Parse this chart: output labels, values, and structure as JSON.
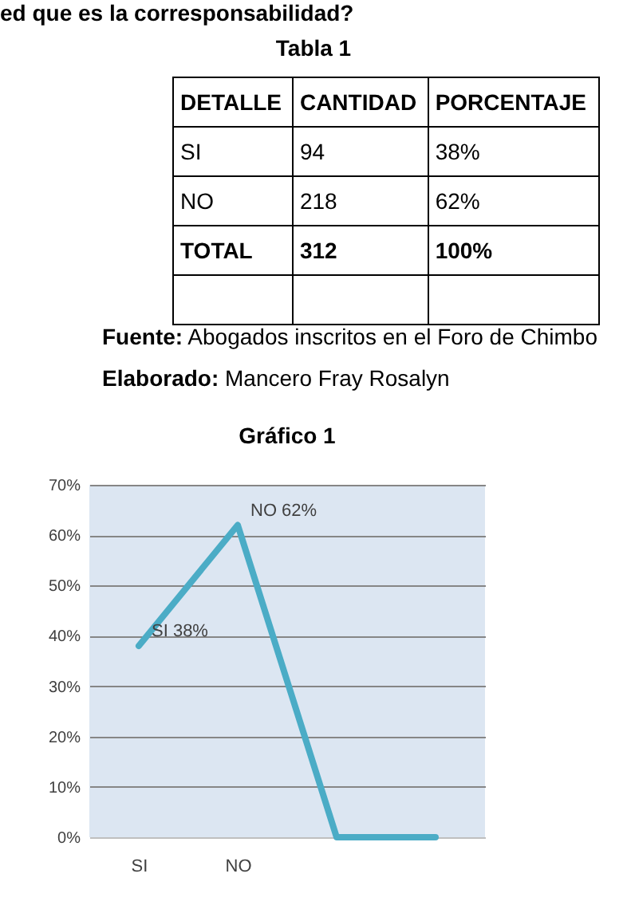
{
  "chart_data": [
    {
      "type": "other",
      "title": "Tabla 1",
      "subtitle": "ed que es la corresponsabilidad?",
      "categories": [
        "DETALLE",
        "CANTIDAD",
        "PORCENTAJE"
      ],
      "annotations": [
        "SI",
        "94",
        "38%",
        "NO",
        "218",
        "62%",
        "TOTAL",
        "312",
        "100%",
        "Fuente: Abogados inscritos en el Foro de Chimbo",
        "Elaborado: Mancero Fray Rosalyn"
      ]
    },
    {
      "type": "line",
      "title": "Gráfico 1",
      "categories": [
        "SI",
        "NO",
        null,
        null
      ],
      "values": [
        38,
        62,
        0,
        0
      ],
      "color": "#4bacc6",
      "value_labels": [
        "SI 38%",
        "NO 62%",
        null,
        null
      ],
      "ylim": [
        0,
        70
      ],
      "yticks": [
        {
          "value": 0,
          "label": "0%"
        },
        {
          "value": 10,
          "label": "10%"
        },
        {
          "value": 20,
          "label": "20%"
        },
        {
          "value": 30,
          "label": "30%"
        },
        {
          "value": 40,
          "label": "40%"
        },
        {
          "value": 50,
          "label": "50%"
        },
        {
          "value": 60,
          "label": "60%"
        },
        {
          "value": 70,
          "label": "70%"
        }
      ],
      "grid": "y",
      "marker": "none"
    }
  ]
}
